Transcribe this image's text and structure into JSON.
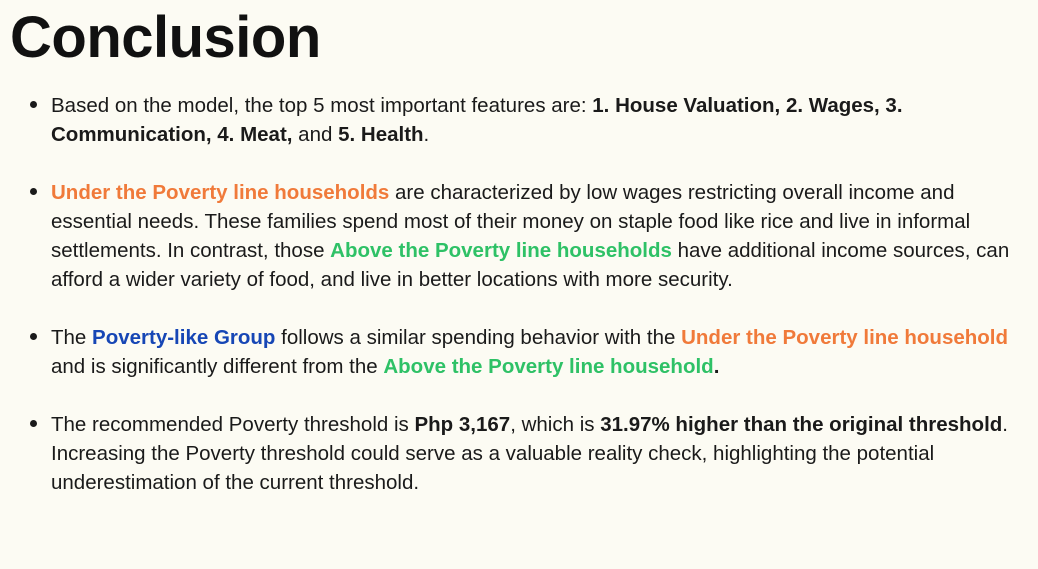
{
  "title": "Conclusion",
  "bullets": [
    {
      "segments": [
        {
          "text": "Based on the model, the top 5 most important features are: ",
          "style": "plain"
        },
        {
          "text": "1. House Valuation, 2. Wages, 3. Communication, 4. Meat,",
          "style": "bold"
        },
        {
          "text": " and ",
          "style": "plain"
        },
        {
          "text": "5. Health",
          "style": "bold"
        },
        {
          "text": ".",
          "style": "plain"
        }
      ]
    },
    {
      "segments": [
        {
          "text": "Under the Poverty line households",
          "style": "orange"
        },
        {
          "text": " are characterized by low wages restricting overall income and essential needs. These families spend most of their money on staple food like rice and live in informal settlements. In contrast, those ",
          "style": "plain"
        },
        {
          "text": "Above the Poverty line households",
          "style": "green"
        },
        {
          "text": " have additional income sources, can afford a wider variety of food, and live in better locations with more security.",
          "style": "plain"
        }
      ]
    },
    {
      "segments": [
        {
          "text": "The ",
          "style": "plain"
        },
        {
          "text": "Poverty-like Group",
          "style": "blue"
        },
        {
          "text": " follows a similar spending behavior with the ",
          "style": "plain"
        },
        {
          "text": "Under the Poverty line household",
          "style": "orange"
        },
        {
          "text": " and is significantly different from the ",
          "style": "plain"
        },
        {
          "text": "Above the Poverty line household",
          "style": "green"
        },
        {
          "text": ".",
          "style": "bold"
        }
      ]
    },
    {
      "segments": [
        {
          "text": "The recommended Poverty threshold is ",
          "style": "plain"
        },
        {
          "text": "Php 3,167",
          "style": "bold"
        },
        {
          "text": ", which is ",
          "style": "plain"
        },
        {
          "text": "31.97% higher than the original threshold",
          "style": "bold"
        },
        {
          "text": ". Increasing the Poverty threshold could serve as a valuable reality check, highlighting the potential underestimation of the current threshold.",
          "style": "plain"
        }
      ]
    }
  ],
  "colors": {
    "background": "#fcfbf3",
    "text": "#1a1a1a",
    "under_poverty": "#f07a3a",
    "above_poverty": "#2ec166",
    "poverty_like": "#1646b5"
  }
}
